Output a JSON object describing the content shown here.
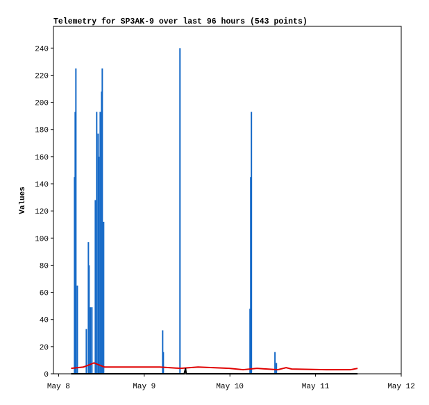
{
  "chart_data": {
    "type": "spikes",
    "title": "Telemetry for SP3AK-9 over last 96 hours (543 points)",
    "y_label": "Values",
    "xlim": [
      -0.06,
      4
    ],
    "ylim": [
      0,
      256
    ],
    "xticks": [
      {
        "value": 0,
        "label": "May 8"
      },
      {
        "value": 1,
        "label": "May 9"
      },
      {
        "value": 2,
        "label": "May 10"
      },
      {
        "value": 3,
        "label": "May 11"
      },
      {
        "value": 4,
        "label": "May 12"
      }
    ],
    "yticks": [
      0,
      20,
      40,
      60,
      80,
      100,
      120,
      140,
      160,
      180,
      200,
      220,
      240
    ],
    "grid": false,
    "series": [
      {
        "style": "spike",
        "color": "#1569c7",
        "x": [
          0.186,
          0.194,
          0.202,
          0.219,
          0.324,
          0.348,
          0.356,
          0.372,
          0.389,
          0.429,
          0.445,
          0.462,
          0.47,
          0.486,
          0.502,
          0.51,
          0.526,
          1.215,
          1.223,
          1.417,
          2.235,
          2.243,
          2.251,
          2.526,
          2.543
        ],
        "values": [
          145,
          193,
          225,
          65,
          33,
          97,
          80,
          49,
          49,
          128,
          193,
          177,
          160,
          193,
          208,
          225,
          112,
          32,
          16,
          240,
          48,
          145,
          193,
          16,
          8
        ]
      },
      {
        "style": "line",
        "color": "#e00000",
        "x": [
          0.146,
          0.291,
          0.332,
          0.413,
          0.534,
          1.182,
          1.425,
          1.628,
          1.992,
          2.154,
          2.316,
          2.559,
          2.656,
          2.721,
          3.126,
          3.409,
          3.49
        ],
        "values": [
          4,
          5,
          6,
          8,
          5,
          5,
          4,
          5,
          4,
          3,
          4,
          3,
          4.5,
          3.5,
          3,
          3,
          4
        ]
      },
      {
        "style": "line",
        "color": "#000000",
        "x": [
          0.146,
          1.466,
          1.482,
          1.49,
          3.49
        ],
        "values": [
          0,
          0,
          4,
          0,
          0
        ]
      }
    ]
  }
}
